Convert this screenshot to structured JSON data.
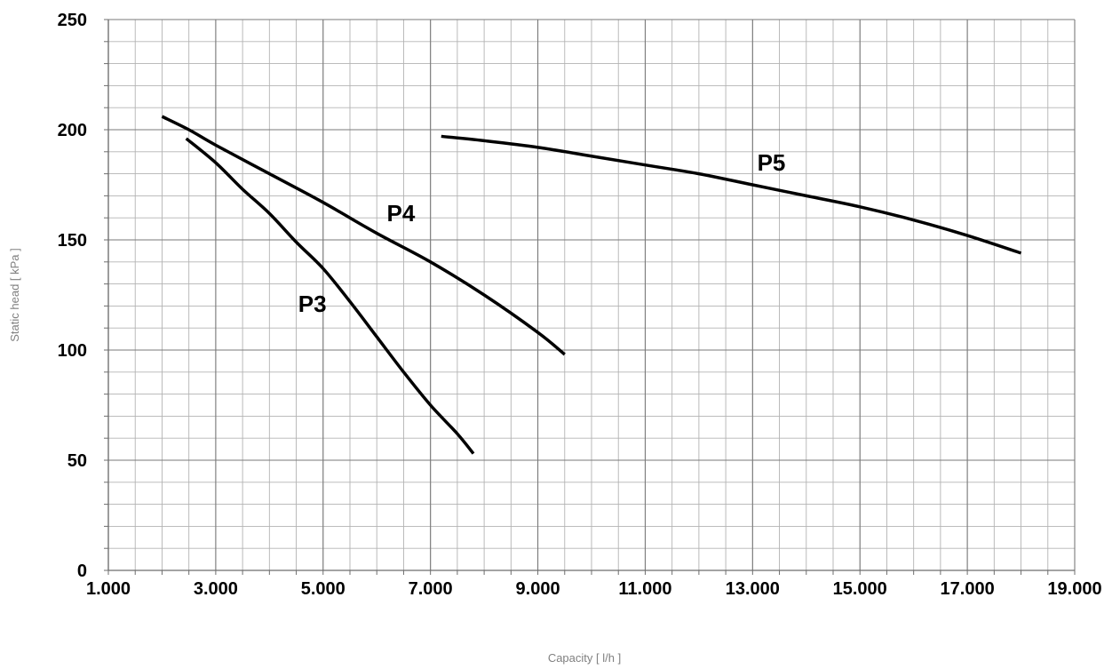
{
  "chart_data": {
    "type": "line",
    "title": "",
    "xlabel": "Capacity [ l/h ]",
    "ylabel": "Static head [ kPa ]",
    "xlim": [
      1000,
      19000
    ],
    "ylim": [
      0,
      250
    ],
    "x_major_ticks": [
      1000,
      3000,
      5000,
      7000,
      9000,
      11000,
      13000,
      15000,
      17000,
      19000
    ],
    "x_tick_labels": [
      "1.000",
      "3.000",
      "5.000",
      "7.000",
      "9.000",
      "11.000",
      "13.000",
      "15.000",
      "17.000",
      "19.000"
    ],
    "x_minor_step": 500,
    "y_major_ticks": [
      0,
      50,
      100,
      150,
      200,
      250
    ],
    "y_tick_labels": [
      "0",
      "50",
      "100",
      "150",
      "200",
      "250"
    ],
    "y_minor_step": 10,
    "grid": true,
    "legend": "none",
    "series": [
      {
        "name": "P3",
        "label_at": [
          4800,
          121
        ],
        "points": [
          [
            2450,
            196
          ],
          [
            3000,
            185
          ],
          [
            3500,
            173
          ],
          [
            4000,
            162
          ],
          [
            4500,
            149
          ],
          [
            5000,
            137
          ],
          [
            5500,
            122
          ],
          [
            6000,
            106
          ],
          [
            6500,
            90
          ],
          [
            7000,
            75
          ],
          [
            7500,
            62
          ],
          [
            7800,
            53
          ]
        ]
      },
      {
        "name": "P4",
        "label_at": [
          6450,
          162
        ],
        "points": [
          [
            2000,
            206
          ],
          [
            2500,
            200
          ],
          [
            3000,
            193
          ],
          [
            4000,
            180
          ],
          [
            5000,
            167
          ],
          [
            6000,
            153
          ],
          [
            7000,
            140
          ],
          [
            8000,
            125
          ],
          [
            9000,
            108
          ],
          [
            9500,
            98
          ]
        ]
      },
      {
        "name": "P5",
        "label_at": [
          13350,
          185
        ],
        "points": [
          [
            7200,
            197
          ],
          [
            8000,
            195
          ],
          [
            9000,
            192
          ],
          [
            10000,
            188
          ],
          [
            11000,
            184
          ],
          [
            12000,
            180
          ],
          [
            13000,
            175
          ],
          [
            14000,
            170
          ],
          [
            15000,
            165
          ],
          [
            16000,
            159
          ],
          [
            17000,
            152
          ],
          [
            18000,
            144
          ]
        ]
      }
    ]
  }
}
